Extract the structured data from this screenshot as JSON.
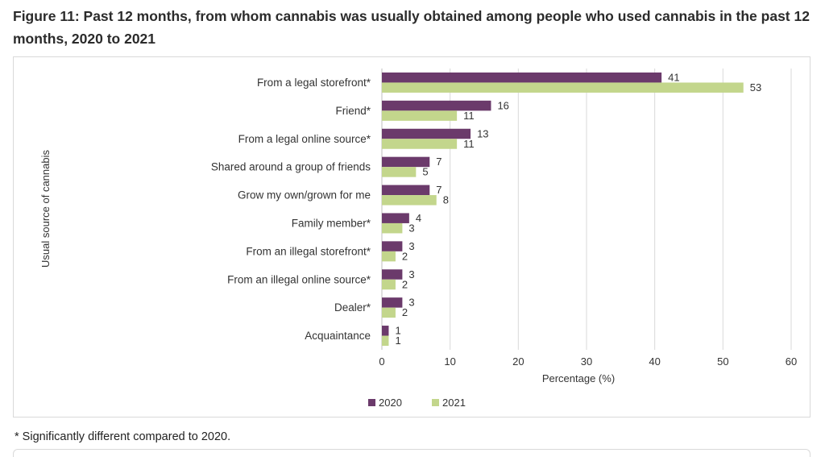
{
  "figure": {
    "title": "Figure 11: Past 12 months, from whom cannabis was usually obtained among people who used cannabis in the past 12 months, 2020 to 2021",
    "footnote": "* Significantly different compared to 2020."
  },
  "chart_data": {
    "type": "bar",
    "orientation": "horizontal",
    "categories": [
      "From a legal storefront*",
      "Friend*",
      "From a legal online source*",
      "Shared around a group of friends",
      "Grow my own/grown for me",
      "Family member*",
      "From an illegal storefront*",
      "From an illegal online source*",
      "Dealer*",
      "Acquaintance"
    ],
    "series": [
      {
        "name": "2020",
        "values": [
          41,
          16,
          13,
          7,
          7,
          4,
          3,
          3,
          3,
          1
        ],
        "color": "#6b3a6b"
      },
      {
        "name": "2021",
        "values": [
          53,
          11,
          11,
          5,
          8,
          3,
          2,
          2,
          2,
          1
        ],
        "color": "#c3d68c"
      }
    ],
    "xlabel": "Percentage (%)",
    "ylabel": "Usual source of cannabis",
    "xlim": [
      0,
      60
    ],
    "xticks": [
      0,
      10,
      20,
      30,
      40,
      50,
      60
    ],
    "grid": "vertical",
    "legend_position": "bottom"
  }
}
